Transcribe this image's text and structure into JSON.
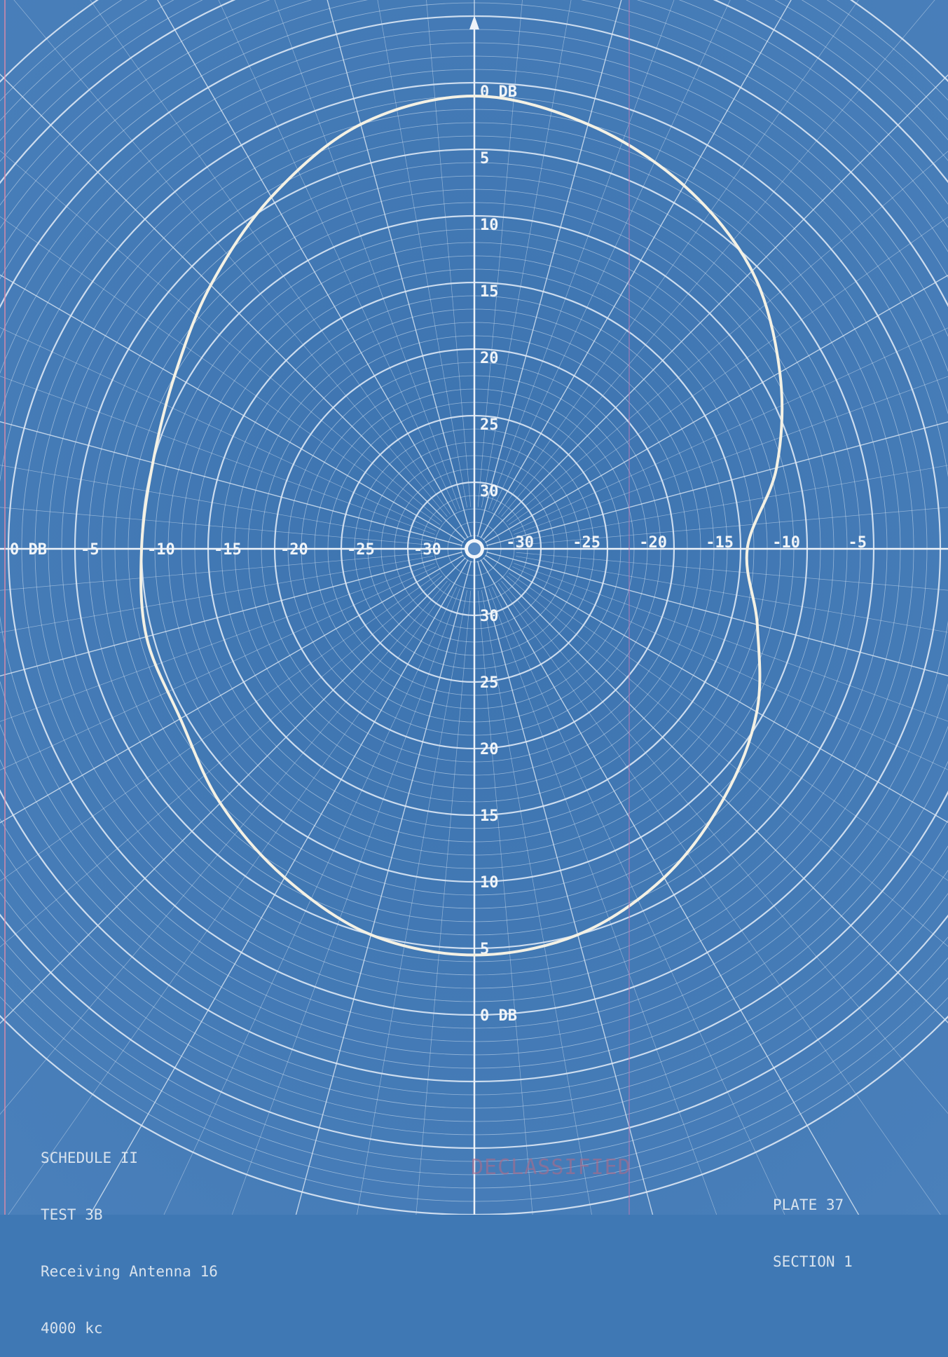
{
  "chart_data": {
    "type": "polar-line",
    "title": "",
    "radial_unit": "DB",
    "radial_range": [
      -35,
      0
    ],
    "radial_ticks": [
      0,
      -5,
      -10,
      -15,
      -20,
      -25,
      -30
    ],
    "axis_labels": {
      "up": [
        "0 DB",
        "5",
        "10",
        "15",
        "20",
        "25",
        "30"
      ],
      "down": [
        "30",
        "25",
        "20",
        "15",
        "10",
        "5",
        "0 DB"
      ],
      "left": [
        "0 DB",
        "-5",
        "-10",
        "-15",
        "-20",
        "-25",
        "-30"
      ],
      "right": [
        "-30",
        "-25",
        "-20",
        "-15",
        "-10",
        "-5"
      ]
    },
    "series": [
      {
        "angles_deg": [
          0,
          15,
          30,
          45,
          60,
          75,
          90,
          105,
          120,
          135,
          150,
          165,
          180,
          195,
          210,
          225,
          240,
          255,
          270,
          285,
          300,
          315,
          330,
          345
        ],
        "values_db": [
          -1,
          -2,
          -3.5,
          -5.5,
          -8.5,
          -11.5,
          -14.5,
          -13,
          -10.5,
          -8.5,
          -6.5,
          -5,
          -4.5,
          -5,
          -6.5,
          -8,
          -9.5,
          -9.5,
          -10,
          -10,
          -9,
          -7,
          -4.5,
          -2
        ]
      }
    ]
  },
  "captions": {
    "left": [
      "SCHEDULE II",
      "TEST 3B",
      "Receiving Antenna 16",
      "4000 kc"
    ],
    "right": [
      "PLATE 37",
      "SECTION 1"
    ],
    "stamp": "DECLASSIFIED"
  },
  "colors": {
    "paper": "#3f78b4",
    "grid": "#dbe7f4",
    "curve": "#f4f1e4"
  }
}
